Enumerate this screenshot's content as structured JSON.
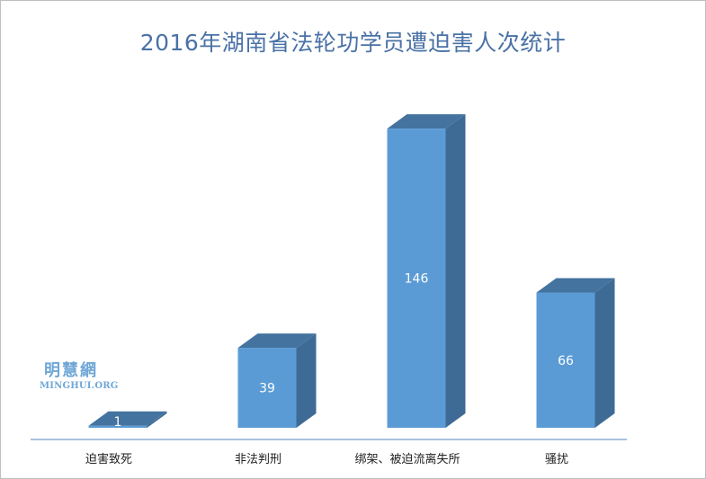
{
  "chart_data": {
    "type": "bar",
    "title": "2016年湖南省法轮功学员遭迫害人次统计",
    "categories": [
      "迫害致死",
      "非法判刑",
      "绑架、被迫流离失所",
      "骚扰"
    ],
    "values": [
      1,
      39,
      146,
      66
    ],
    "data_labels": [
      "1",
      "39",
      "146",
      "66"
    ],
    "ylim": [
      0,
      160
    ],
    "grid": false,
    "legend": "none",
    "style": "3d",
    "colors": {
      "front": "#5b9bd5",
      "side": "#3e6b95",
      "top": "#44739f",
      "axis": "#8eaed3"
    }
  },
  "watermark": {
    "cn": "明慧網",
    "en": "MINGHUI.ORG"
  }
}
